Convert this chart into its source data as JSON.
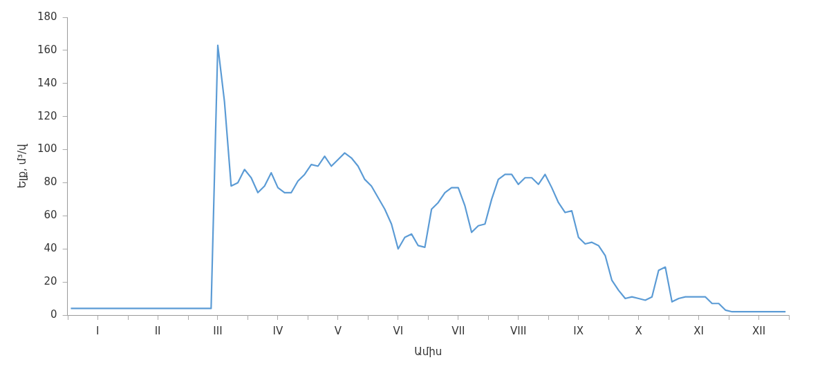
{
  "chart_data": {
    "type": "line",
    "xlabel": "Ամիս",
    "ylabel": "Ելք, մ³/վ",
    "categories": [
      null,
      null,
      null,
      null,
      "I",
      null,
      null,
      null,
      null,
      null,
      null,
      null,
      null,
      "II",
      null,
      null,
      null,
      null,
      null,
      null,
      null,
      null,
      "III",
      null,
      null,
      null,
      null,
      null,
      null,
      null,
      null,
      "IV",
      null,
      null,
      null,
      null,
      null,
      null,
      null,
      null,
      "V",
      null,
      null,
      null,
      null,
      null,
      null,
      null,
      null,
      "VI",
      null,
      null,
      null,
      null,
      null,
      null,
      null,
      null,
      "VII",
      null,
      null,
      null,
      null,
      null,
      null,
      null,
      null,
      "VIII",
      null,
      null,
      null,
      null,
      null,
      null,
      null,
      null,
      "IX",
      null,
      null,
      null,
      null,
      null,
      null,
      null,
      null,
      "X",
      null,
      null,
      null,
      null,
      null,
      null,
      null,
      null,
      "XI",
      null,
      null,
      null,
      null,
      null,
      null,
      null,
      null,
      "XII",
      null,
      null,
      null,
      null
    ],
    "series": [
      {
        "color": "#5b9bd5",
        "values": [
          4,
          4,
          4,
          4,
          4,
          4,
          4,
          4,
          4,
          4,
          4,
          4,
          4,
          4,
          4,
          4,
          4,
          4,
          4,
          4,
          4,
          4,
          163,
          129,
          78,
          80,
          88,
          83,
          74,
          78,
          86,
          77,
          74,
          74,
          81,
          85,
          91,
          90,
          96,
          90,
          94,
          98,
          95,
          90,
          82,
          78,
          71,
          64,
          55,
          40,
          47,
          49,
          42,
          41,
          64,
          68,
          74,
          77,
          77,
          66,
          50,
          54,
          55,
          70,
          82,
          85,
          85,
          79,
          83,
          83,
          79,
          85,
          77,
          68,
          62,
          63,
          47,
          43,
          44,
          42,
          36,
          21,
          15,
          10,
          11,
          10,
          9,
          11,
          27,
          29,
          8,
          10,
          11,
          11,
          11,
          11,
          7,
          7,
          3,
          2,
          2,
          2,
          2,
          2,
          2,
          2,
          2,
          2
        ]
      }
    ],
    "ylim": [
      0,
      180
    ],
    "yticks": [
      0,
      20,
      40,
      60,
      80,
      100,
      120,
      140,
      160,
      180
    ],
    "grid": false
  }
}
